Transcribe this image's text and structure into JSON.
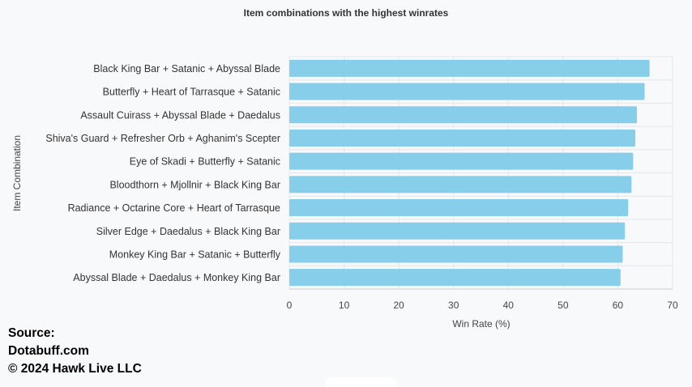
{
  "chart_data": {
    "type": "bar",
    "orientation": "horizontal",
    "title": "Item combinations with the highest winrates",
    "xlabel": "Win Rate (%)",
    "ylabel": "Item Combination",
    "xlim": [
      0,
      70
    ],
    "xticks": [
      0,
      10,
      20,
      30,
      40,
      50,
      60,
      70
    ],
    "categories": [
      "Black King Bar + Satanic + Abyssal Blade",
      "Butterfly + Heart of Tarrasque + Satanic",
      "Assault Cuirass + Abyssal Blade + Daedalus",
      "Shiva's Guard + Refresher Orb + Aghanim's Scepter",
      "Eye of Skadi + Butterfly + Satanic",
      "Bloodthorn + Mjollnir + Black King Bar",
      "Radiance + Octarine Core + Heart of Tarrasque",
      "Silver Edge + Daedalus + Black King Bar",
      "Monkey King Bar + Satanic + Butterfly",
      "Abyssal Blade + Daedalus + Monkey King Bar"
    ],
    "values": [
      65.8,
      64.9,
      63.5,
      63.2,
      62.8,
      62.5,
      61.9,
      61.3,
      60.9,
      60.5
    ],
    "bar_color": "#87ceeb",
    "grid": true
  },
  "source": {
    "line1": "Source:",
    "line2": "Dotabuff.com",
    "line3": "© 2024 Hawk Live LLC"
  }
}
